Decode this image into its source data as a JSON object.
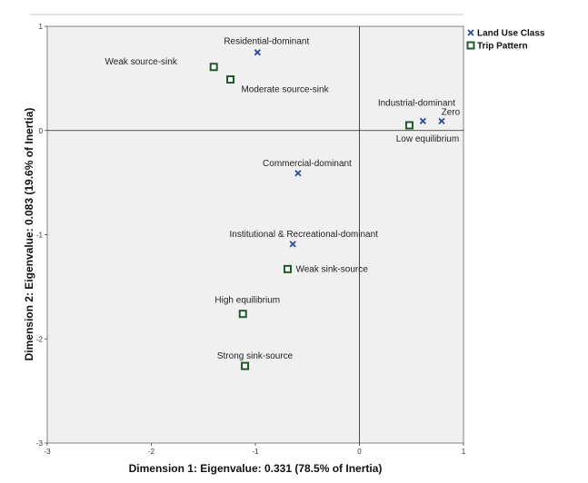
{
  "chart_data": {
    "type": "scatter",
    "xlabel": "Dimension 1: Eigenvalue: 0.331 (78.5% of Inertia)",
    "ylabel": "Dimension 2: Eigenvalue: 0.083 (19.6% of Inertia)",
    "xlim": [
      -3,
      1
    ],
    "ylim": [
      -3,
      1
    ],
    "x_ticks": [
      "-3",
      "-2",
      "-1",
      "0",
      "1"
    ],
    "y_ticks": [
      "1",
      "0",
      "-1",
      "-2",
      "-3"
    ],
    "grid": false,
    "reference_lines": {
      "x": 0,
      "y": 0
    },
    "legend_position": "top-right",
    "series": [
      {
        "name": "Land Use Class",
        "marker": "x",
        "color": "#2a4a9c",
        "points": [
          {
            "label": "Residential-dominant",
            "x": -0.98,
            "y": 0.75
          },
          {
            "label": "Industrial-dominant",
            "x": 0.61,
            "y": 0.09
          },
          {
            "label": "Zero",
            "x": 0.79,
            "y": 0.09
          },
          {
            "label": "Commercial-dominant",
            "x": -0.59,
            "y": -0.41
          },
          {
            "label": "Institutional & Recreational-dominant",
            "x": -0.64,
            "y": -1.09
          }
        ]
      },
      {
        "name": "Trip Pattern",
        "marker": "square",
        "color": "#1d5b2c",
        "points": [
          {
            "label": "Weak source-sink",
            "x": -1.4,
            "y": 0.61
          },
          {
            "label": "Moderate source-sink",
            "x": -1.24,
            "y": 0.49
          },
          {
            "label": "Low equilibrium",
            "x": 0.48,
            "y": 0.05
          },
          {
            "label": "Weak sink-source",
            "x": -0.69,
            "y": -1.33
          },
          {
            "label": "High equilibrium",
            "x": -1.12,
            "y": -1.76
          },
          {
            "label": "Strong sink-source",
            "x": -1.1,
            "y": -2.26
          }
        ]
      }
    ]
  }
}
